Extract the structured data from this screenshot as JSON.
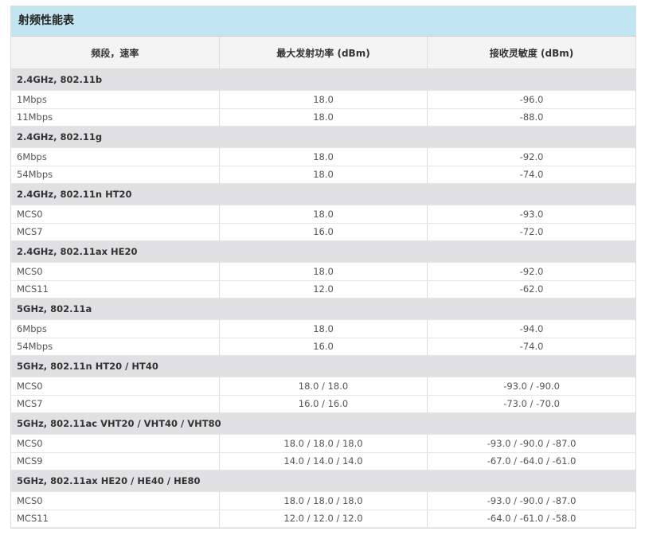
{
  "title": "射频性能表",
  "headers": [
    "频段，速率",
    "最大发射功率 (dBm)",
    "接收灵敏度 (dBm)"
  ],
  "groups": [
    {
      "name": "2.4GHz, 802.11b",
      "rows": [
        [
          "1Mbps",
          "18.0",
          "-96.0"
        ],
        [
          "11Mbps",
          "18.0",
          "-88.0"
        ]
      ]
    },
    {
      "name": "2.4GHz, 802.11g",
      "rows": [
        [
          "6Mbps",
          "18.0",
          "-92.0"
        ],
        [
          "54Mbps",
          "18.0",
          "-74.0"
        ]
      ]
    },
    {
      "name": "2.4GHz, 802.11n HT20",
      "rows": [
        [
          "MCS0",
          "18.0",
          "-93.0"
        ],
        [
          "MCS7",
          "16.0",
          "-72.0"
        ]
      ]
    },
    {
      "name": "2.4GHz, 802.11ax HE20",
      "rows": [
        [
          "MCS0",
          "18.0",
          "-92.0"
        ],
        [
          "MCS11",
          "12.0",
          "-62.0"
        ]
      ]
    },
    {
      "name": "5GHz, 802.11a",
      "rows": [
        [
          "6Mbps",
          "18.0",
          "-94.0"
        ],
        [
          "54Mbps",
          "16.0",
          "-74.0"
        ]
      ]
    },
    {
      "name": "5GHz, 802.11n HT20 / HT40",
      "rows": [
        [
          "MCS0",
          "18.0 / 18.0",
          "-93.0 / -90.0"
        ],
        [
          "MCS7",
          "16.0 / 16.0",
          "-73.0 / -70.0"
        ]
      ]
    },
    {
      "name": "5GHz, 802.11ac VHT20 / VHT40 / VHT80",
      "rows": [
        [
          "MCS0",
          "18.0 / 18.0 / 18.0",
          "-93.0 / -90.0 / -87.0"
        ],
        [
          "MCS9",
          "14.0 / 14.0 / 14.0",
          "-67.0 / -64.0 / -61.0"
        ]
      ]
    },
    {
      "name": "5GHz, 802.11ax HE20 / HE40 / HE80",
      "rows": [
        [
          "MCS0",
          "18.0 / 18.0 / 18.0",
          "-93.0 / -90.0 / -87.0"
        ],
        [
          "MCS11",
          "12.0 / 12.0 / 12.0",
          "-64.0 / -61.0 / -58.0"
        ]
      ]
    }
  ]
}
